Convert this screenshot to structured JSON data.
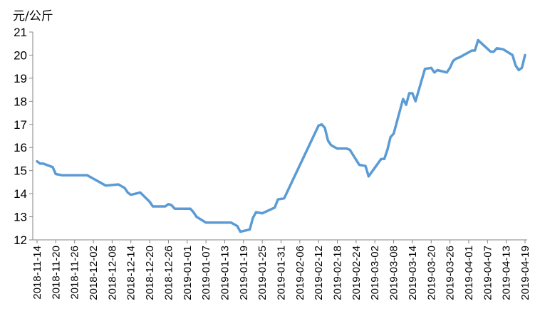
{
  "chart_data": {
    "type": "line",
    "title": "",
    "unit_label": "元/公斤",
    "xlabel": "",
    "ylabel": "",
    "ylim": [
      12,
      21
    ],
    "yticks": [
      12,
      13,
      14,
      15,
      16,
      17,
      18,
      19,
      20,
      21
    ],
    "xlim": [
      "2018-11-14",
      "2019-04-19"
    ],
    "xticks": [
      "2018-11-14",
      "2018-11-20",
      "2018-11-26",
      "2018-12-02",
      "2018-12-08",
      "2018-12-14",
      "2018-12-20",
      "2018-12-26",
      "2019-01-01",
      "2019-01-07",
      "2019-01-13",
      "2019-01-19",
      "2019-01-25",
      "2019-01-31",
      "2019-02-06",
      "2019-02-12",
      "2019-02-18",
      "2019-02-24",
      "2019-03-02",
      "2019-03-08",
      "2019-03-14",
      "2019-03-20",
      "2019-03-26",
      "2019-04-01",
      "2019-04-07",
      "2019-04-13",
      "2019-04-19"
    ],
    "grid": false,
    "line_color": "#5B9BD5",
    "series": [
      {
        "points": [
          [
            "2018-11-14",
            15.4
          ],
          [
            "2018-11-15",
            15.3
          ],
          [
            "2018-11-16",
            15.3
          ],
          [
            "2018-11-19",
            15.15
          ],
          [
            "2018-11-20",
            14.85
          ],
          [
            "2018-11-22",
            14.8
          ],
          [
            "2018-11-30",
            14.8
          ],
          [
            "2018-12-02",
            14.65
          ],
          [
            "2018-12-06",
            14.35
          ],
          [
            "2018-12-10",
            14.4
          ],
          [
            "2018-12-12",
            14.25
          ],
          [
            "2018-12-13",
            14.05
          ],
          [
            "2018-12-14",
            13.95
          ],
          [
            "2018-12-17",
            14.05
          ],
          [
            "2018-12-20",
            13.65
          ],
          [
            "2018-12-21",
            13.45
          ],
          [
            "2018-12-25",
            13.45
          ],
          [
            "2018-12-26",
            13.55
          ],
          [
            "2018-12-27",
            13.5
          ],
          [
            "2018-12-28",
            13.35
          ],
          [
            "2019-01-02",
            13.35
          ],
          [
            "2019-01-03",
            13.2
          ],
          [
            "2019-01-04",
            13.0
          ],
          [
            "2019-01-07",
            12.75
          ],
          [
            "2019-01-15",
            12.75
          ],
          [
            "2019-01-17",
            12.6
          ],
          [
            "2019-01-18",
            12.35
          ],
          [
            "2019-01-21",
            12.45
          ],
          [
            "2019-01-22",
            12.95
          ],
          [
            "2019-01-23",
            13.2
          ],
          [
            "2019-01-25",
            13.15
          ],
          [
            "2019-01-29",
            13.4
          ],
          [
            "2019-01-30",
            13.75
          ],
          [
            "2019-02-01",
            13.8
          ],
          [
            "2019-02-12",
            16.95
          ],
          [
            "2019-02-13",
            17.0
          ],
          [
            "2019-02-14",
            16.85
          ],
          [
            "2019-02-15",
            16.3
          ],
          [
            "2019-02-16",
            16.1
          ],
          [
            "2019-02-18",
            15.95
          ],
          [
            "2019-02-21",
            15.95
          ],
          [
            "2019-02-22",
            15.9
          ],
          [
            "2019-02-25",
            15.25
          ],
          [
            "2019-02-27",
            15.2
          ],
          [
            "2019-02-28",
            14.75
          ],
          [
            "2019-03-04",
            15.5
          ],
          [
            "2019-03-05",
            15.5
          ],
          [
            "2019-03-06",
            15.9
          ],
          [
            "2019-03-07",
            16.45
          ],
          [
            "2019-03-08",
            16.6
          ],
          [
            "2019-03-11",
            18.1
          ],
          [
            "2019-03-12",
            17.85
          ],
          [
            "2019-03-13",
            18.35
          ],
          [
            "2019-03-14",
            18.35
          ],
          [
            "2019-03-15",
            18.0
          ],
          [
            "2019-03-18",
            19.4
          ],
          [
            "2019-03-20",
            19.45
          ],
          [
            "2019-03-21",
            19.25
          ],
          [
            "2019-03-22",
            19.35
          ],
          [
            "2019-03-25",
            19.25
          ],
          [
            "2019-03-26",
            19.45
          ],
          [
            "2019-03-27",
            19.75
          ],
          [
            "2019-03-28",
            19.85
          ],
          [
            "2019-03-29",
            19.9
          ],
          [
            "2019-04-02",
            20.2
          ],
          [
            "2019-04-03",
            20.2
          ],
          [
            "2019-04-04",
            20.65
          ],
          [
            "2019-04-08",
            20.15
          ],
          [
            "2019-04-09",
            20.15
          ],
          [
            "2019-04-10",
            20.3
          ],
          [
            "2019-04-12",
            20.25
          ],
          [
            "2019-04-15",
            20.0
          ],
          [
            "2019-04-16",
            19.55
          ],
          [
            "2019-04-17",
            19.35
          ],
          [
            "2019-04-18",
            19.45
          ],
          [
            "2019-04-19",
            20.0
          ]
        ]
      }
    ]
  }
}
